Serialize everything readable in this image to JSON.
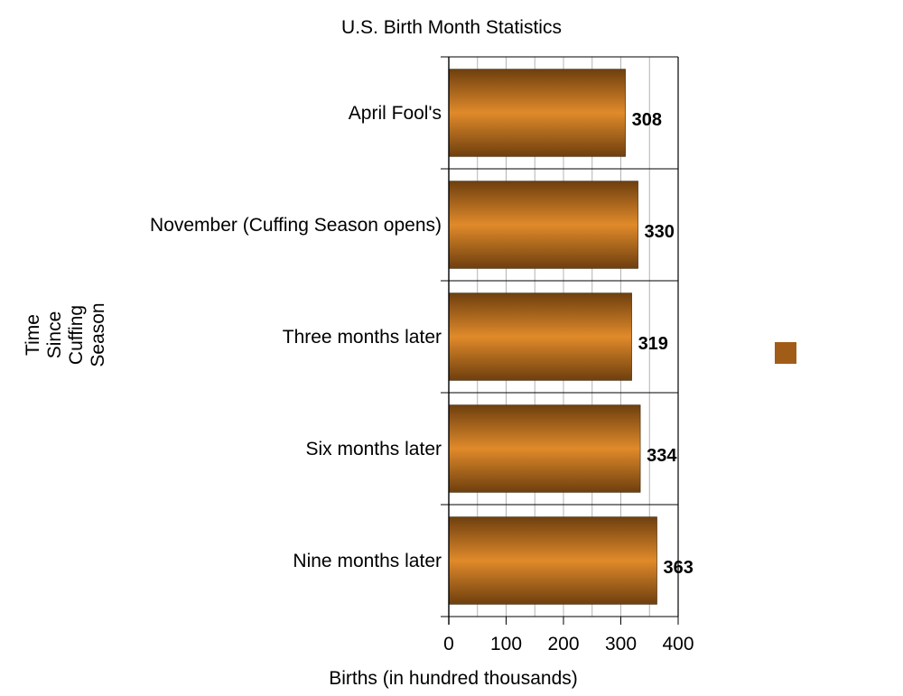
{
  "chart_data": {
    "type": "bar",
    "orientation": "horizontal",
    "title": "U.S. Birth Month Statistics",
    "xlabel": "Births (in hundred thousands)",
    "ylabel_lines": [
      "Time",
      "Since",
      "Cuffing",
      "Season"
    ],
    "categories": [
      "April Fool's",
      "November (Cuffing Season opens)",
      "Three months later",
      "Six months later",
      "Nine months later"
    ],
    "values": [
      308,
      330,
      319,
      334,
      363
    ],
    "data_labels": [
      "308",
      "330",
      "319",
      "334",
      "363"
    ],
    "xlim": [
      0,
      400
    ],
    "xticks": [
      "0",
      "100",
      "200",
      "300",
      "400"
    ],
    "grid": "vertical",
    "legend": "right",
    "bar_color": "#c97a2a",
    "legend_color": "#a15c17"
  }
}
